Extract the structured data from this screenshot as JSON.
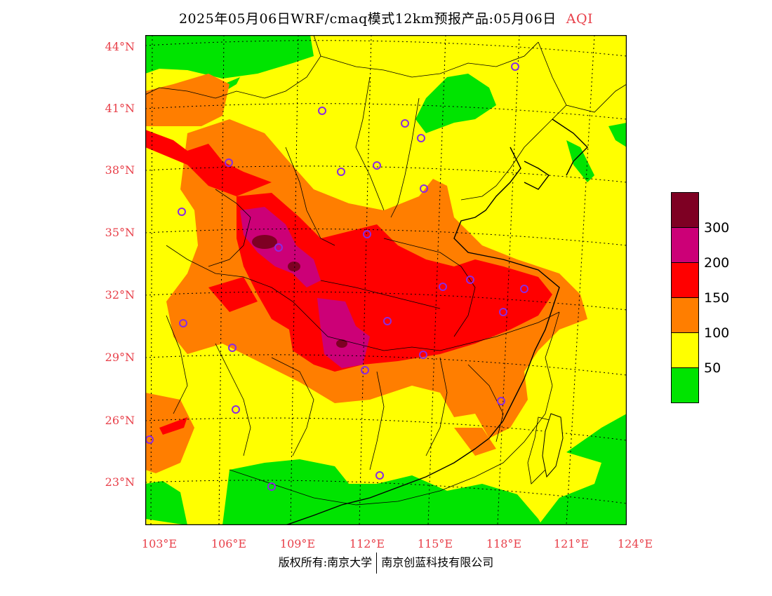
{
  "title": {
    "main": "2025年05月06日WRF/cmaq模式12km预报产品:05月06日",
    "variable": "AQI"
  },
  "colors": {
    "good": "#00e400",
    "moderate": "#ffff00",
    "usg": "#ff7e00",
    "unhealthy": "#ff0000",
    "very_unhealthy": "#cc0077",
    "hazardous": "#7e0023",
    "station": "#8a2be2",
    "axis_label": "#e8404a"
  },
  "latitude_ticks": [
    "44°N",
    "41°N",
    "38°N",
    "35°N",
    "32°N",
    "29°N",
    "26°N",
    "23°N"
  ],
  "longitude_ticks": [
    "103°E",
    "106°E",
    "109°E",
    "112°E",
    "115°E",
    "118°E",
    "121°E",
    "124°E"
  ],
  "legend": {
    "colors": [
      "#7e0023",
      "#cc0077",
      "#ff0000",
      "#ff7e00",
      "#ffff00",
      "#00e400"
    ],
    "labels": [
      "300",
      "200",
      "150",
      "100",
      "50"
    ]
  },
  "footer": {
    "left": "版权所有:南京大学",
    "right": "南京创蓝科技有限公司"
  }
}
